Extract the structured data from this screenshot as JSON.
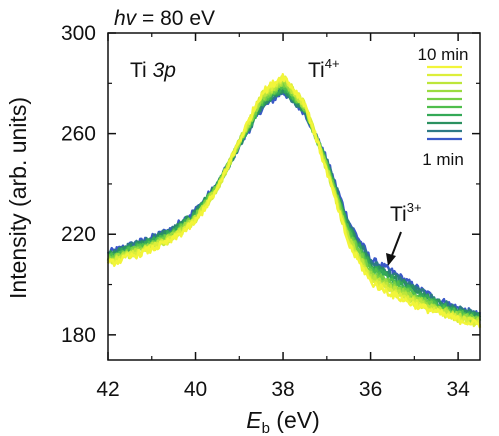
{
  "chart_data": {
    "type": "line",
    "header": {
      "hv_symbol": "hv",
      "hv_rest": " = 80 eV"
    },
    "xlabel": {
      "symbol": "E",
      "subscript": "b",
      "unit": " (eV)"
    },
    "ylabel": "Intensity (arb. units)",
    "x_reversed": true,
    "xlim": [
      42,
      33.5
    ],
    "ylim": [
      170,
      300
    ],
    "x_ticks": [
      42,
      40,
      38,
      36,
      34
    ],
    "y_ticks": [
      180,
      220,
      260,
      300
    ],
    "grid": false,
    "annotations": {
      "core_level_prefix": "Ti ",
      "core_level_orbital": "3p",
      "ti4_base": "Ti",
      "ti4_charge": "4+",
      "ti3_base": "Ti",
      "ti3_charge": "3+"
    },
    "legend": {
      "placement": "top-right",
      "top_label": "10 min",
      "bottom_label": "1 min",
      "colors": [
        "#f2f53a",
        "#dcee3a",
        "#bde63a",
        "#9bdc3f",
        "#74cf45",
        "#4fbe4c",
        "#34a957",
        "#2b9160",
        "#2d7a86",
        "#3a58c8"
      ]
    },
    "series": [
      {
        "x": [
          42,
          41.5,
          41,
          40.5,
          40,
          39.5,
          39,
          38.5,
          38,
          37.5,
          37,
          36.5,
          36,
          35.5,
          35,
          34.5,
          34,
          33.5
        ],
        "values": [
          208,
          211,
          214,
          218,
          225,
          238,
          257,
          276,
          283,
          272,
          245,
          216,
          201,
          196,
          192,
          189,
          186,
          184
        ]
      },
      {
        "x": [
          42,
          41.5,
          41,
          40.5,
          40,
          39.5,
          39,
          38.5,
          38,
          37.5,
          37,
          36.5,
          36,
          35.5,
          35,
          34.5,
          34,
          33.5
        ],
        "values": [
          208.5,
          211.5,
          214.5,
          218.5,
          225.5,
          238.2,
          256.8,
          275.3,
          282.3,
          271.6,
          245.5,
          217,
          202,
          197,
          192.8,
          189.6,
          186.5,
          184.4
        ]
      },
      {
        "x": [
          42,
          41.5,
          41,
          40.5,
          40,
          39.5,
          39,
          38.5,
          38,
          37.5,
          37,
          36.5,
          36,
          35.5,
          35,
          34.5,
          34,
          33.5
        ],
        "values": [
          209,
          212,
          215,
          219,
          226,
          238.4,
          256.6,
          274.6,
          281.6,
          271.2,
          246,
          218,
          203,
          198,
          193.6,
          190.2,
          187,
          184.8
        ]
      },
      {
        "x": [
          42,
          41.5,
          41,
          40.5,
          40,
          39.5,
          39,
          38.5,
          38,
          37.5,
          37,
          36.5,
          36,
          35.5,
          35,
          34.5,
          34,
          33.5
        ],
        "values": [
          209.5,
          212.5,
          215.5,
          219.5,
          226.5,
          238.6,
          256.4,
          273.9,
          280.9,
          270.8,
          246.5,
          219,
          204,
          199,
          194.4,
          190.8,
          187.5,
          185.2
        ]
      },
      {
        "x": [
          42,
          41.5,
          41,
          40.5,
          40,
          39.5,
          39,
          38.5,
          38,
          37.5,
          37,
          36.5,
          36,
          35.5,
          35,
          34.5,
          34,
          33.5
        ],
        "values": [
          210,
          213,
          216,
          220,
          227,
          238.8,
          256.2,
          273.2,
          280.2,
          270.4,
          247,
          220,
          205,
          200,
          195.2,
          191.4,
          188,
          185.6
        ]
      },
      {
        "x": [
          42,
          41.5,
          41,
          40.5,
          40,
          39.5,
          39,
          38.5,
          38,
          37.5,
          37,
          36.5,
          36,
          35.5,
          35,
          34.5,
          34,
          33.5
        ],
        "values": [
          210.5,
          213.5,
          216.5,
          220.5,
          227.5,
          239,
          256,
          272.5,
          279.5,
          270,
          247.5,
          221,
          206,
          201,
          196,
          192,
          188.5,
          186
        ]
      },
      {
        "x": [
          42,
          41.5,
          41,
          40.5,
          40,
          39.5,
          39,
          38.5,
          38,
          37.5,
          37,
          36.5,
          36,
          35.5,
          35,
          34.5,
          34,
          33.5
        ],
        "values": [
          211,
          214,
          217,
          221,
          228,
          239.2,
          255.8,
          271.8,
          278.8,
          269.6,
          248,
          222,
          207,
          202,
          196.8,
          192.6,
          189,
          186.4
        ]
      },
      {
        "x": [
          42,
          41.5,
          41,
          40.5,
          40,
          39.5,
          39,
          38.5,
          38,
          37.5,
          37,
          36.5,
          36,
          35.5,
          35,
          34.5,
          34,
          33.5
        ],
        "values": [
          211.5,
          214.5,
          217.5,
          221.5,
          228.5,
          239.4,
          255.6,
          271.1,
          278.1,
          269.2,
          248.5,
          223,
          208,
          203,
          197.6,
          193.2,
          189.5,
          186.8
        ]
      },
      {
        "x": [
          42,
          41.5,
          41,
          40.5,
          40,
          39.5,
          39,
          38.5,
          38,
          37.5,
          37,
          36.5,
          36,
          35.5,
          35,
          34.5,
          34,
          33.5
        ],
        "values": [
          212,
          215,
          218,
          222,
          229,
          239.6,
          255.4,
          270.4,
          277.4,
          268.8,
          249,
          224,
          209,
          204,
          198.4,
          193.8,
          190,
          187.2
        ]
      },
      {
        "x": [
          42,
          41.5,
          41,
          40.5,
          40,
          39.5,
          39,
          38.5,
          38,
          37.5,
          37,
          36.5,
          36,
          35.5,
          35,
          34.5,
          34,
          33.5
        ],
        "values": [
          212.5,
          215.5,
          218.5,
          222.5,
          229.5,
          239.8,
          255.2,
          269.7,
          276.7,
          268.4,
          249.5,
          225,
          210,
          205,
          199.2,
          194.4,
          190.5,
          187.6
        ]
      }
    ]
  }
}
